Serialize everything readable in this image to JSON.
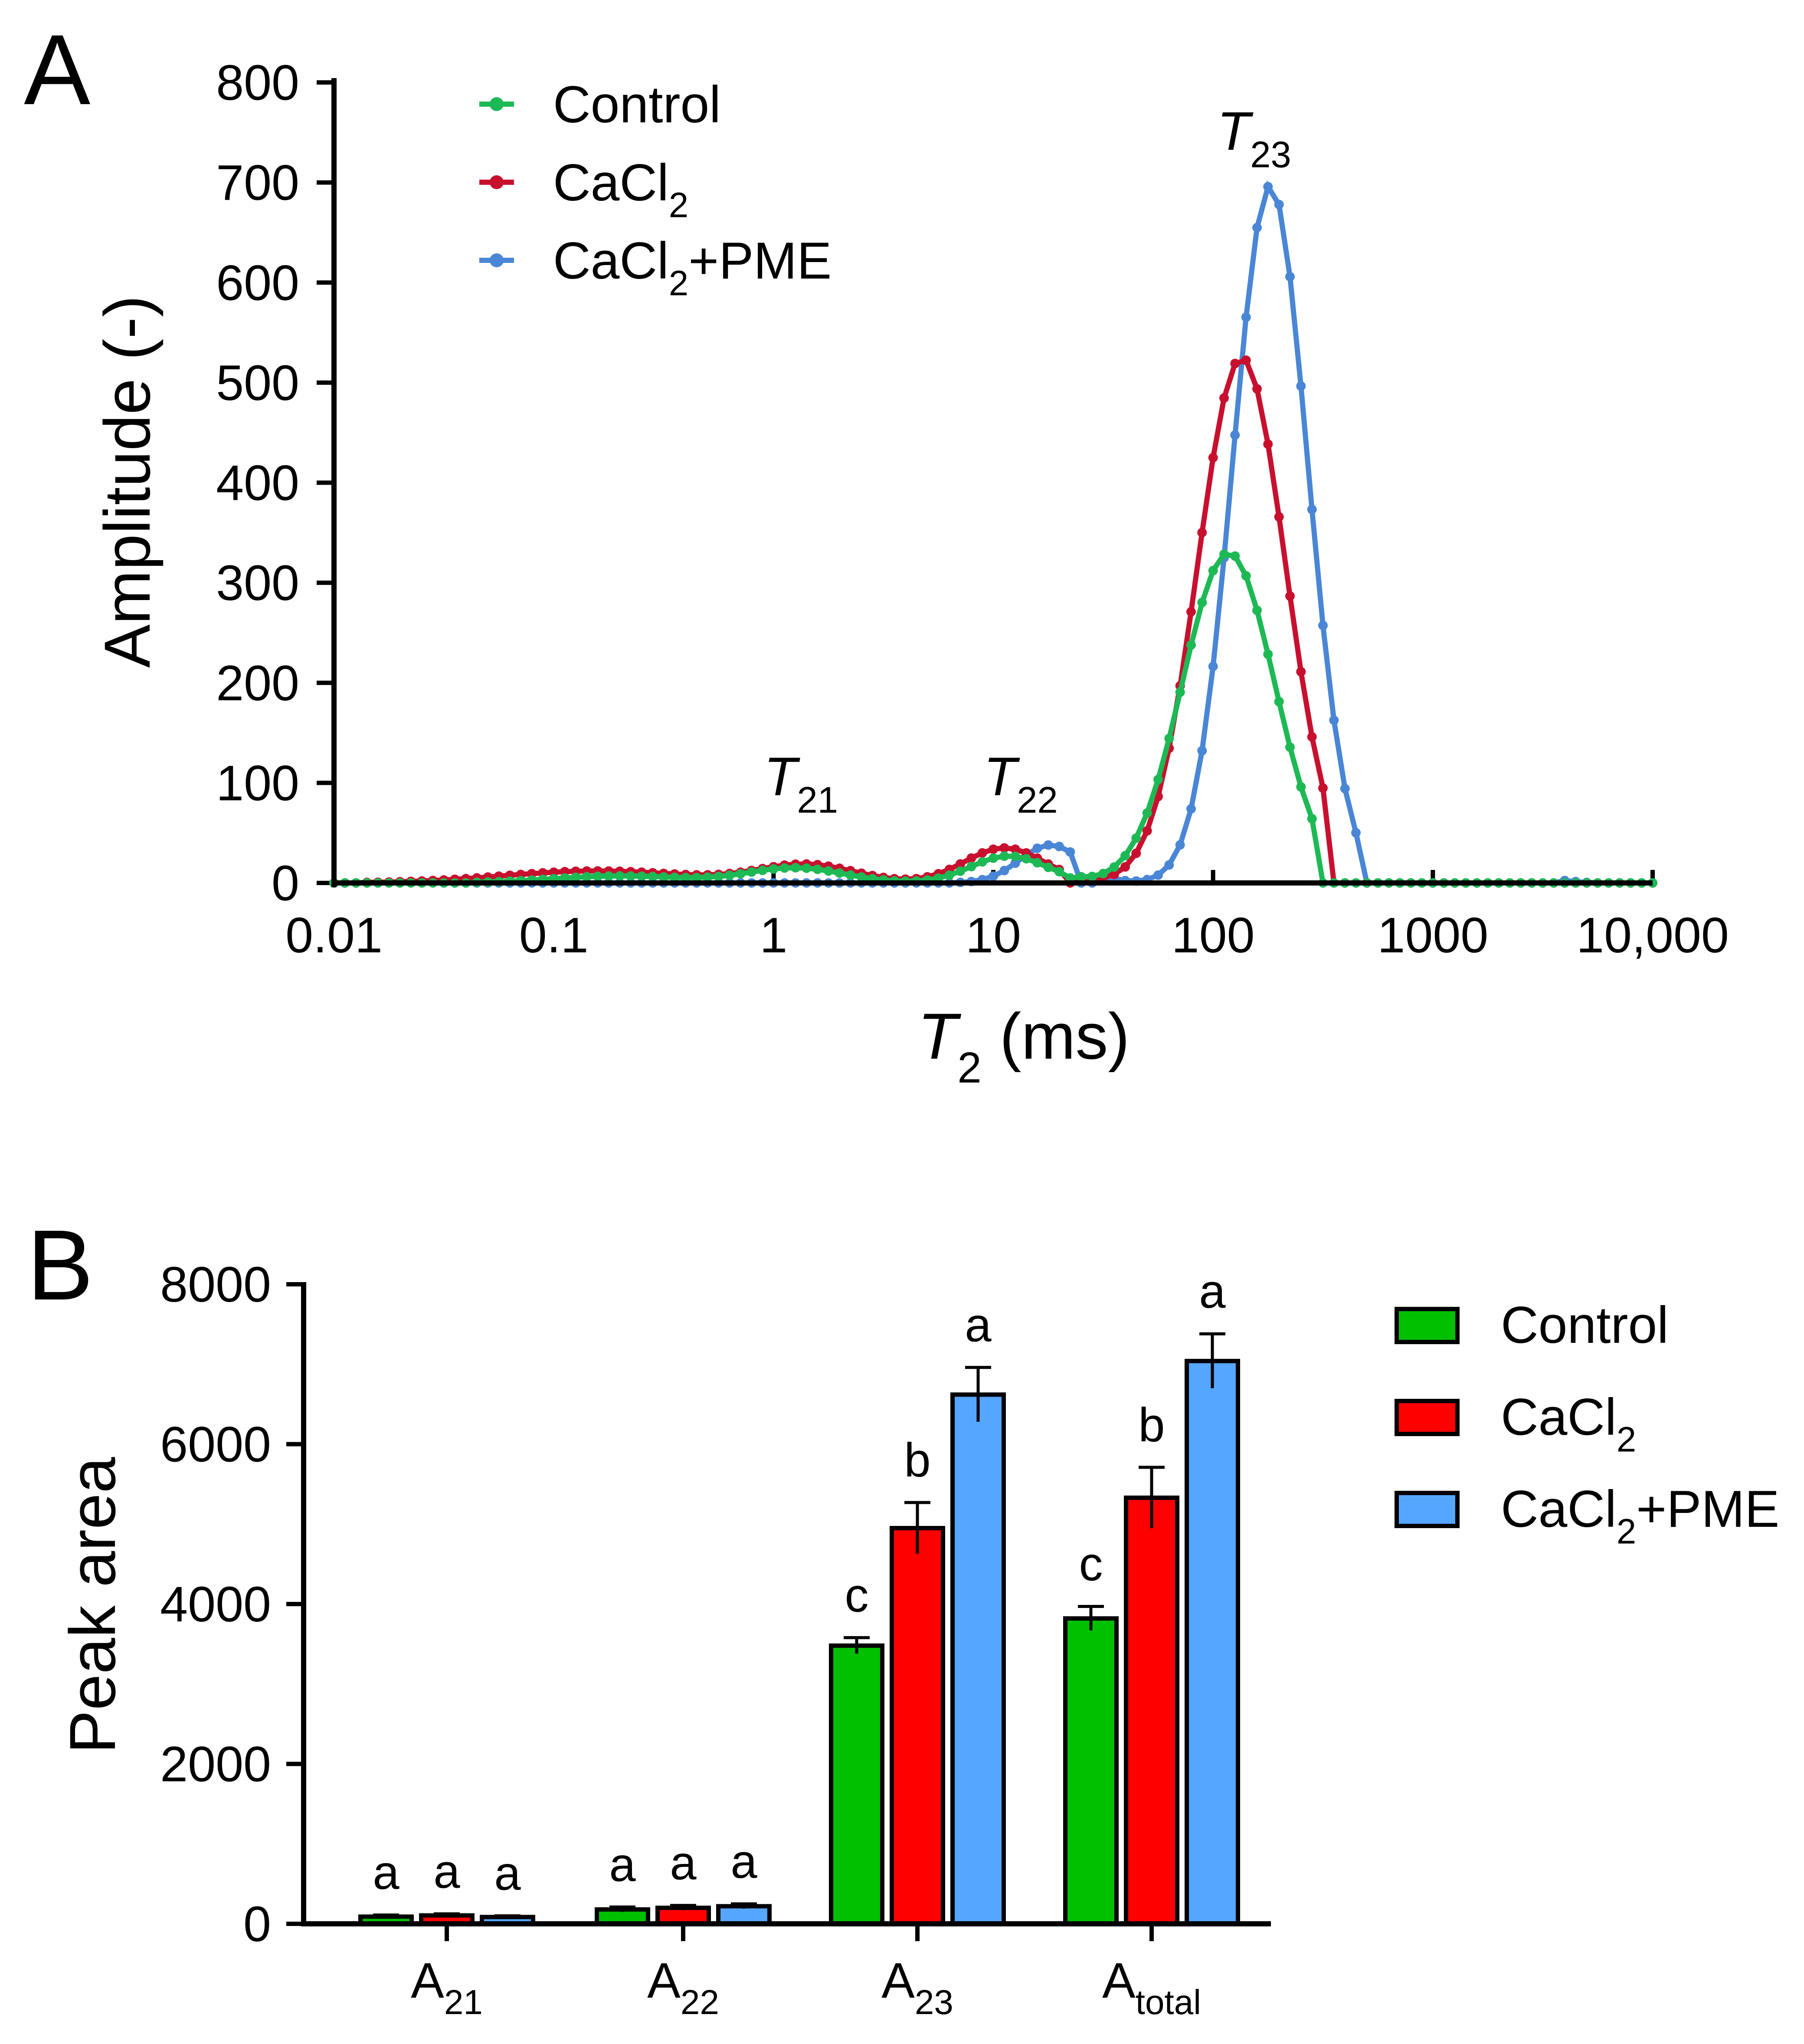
{
  "colors": {
    "control": "#1db954",
    "cacl2": "#c8102e",
    "pme": "#4a86d6",
    "bar_control": "#00c000",
    "bar_cacl2": "#ff0000",
    "bar_pme": "#55a6ff"
  },
  "chart_data": [
    {
      "panel": "A",
      "type": "line",
      "xscale": "log",
      "xlim": [
        0.01,
        10000
      ],
      "ylim": [
        0,
        800
      ],
      "xticks": [
        0.01,
        0.1,
        1,
        10,
        100,
        1000,
        10000
      ],
      "xtick_labels": [
        "0.01",
        "0.1",
        "1",
        "10",
        "100",
        "1000",
        "10,000"
      ],
      "yticks": [
        0,
        100,
        200,
        300,
        400,
        500,
        600,
        700,
        800
      ],
      "ytick_labels": [
        "0",
        "100",
        "200",
        "300",
        "400",
        "500",
        "600",
        "700",
        "800"
      ],
      "ylabel": "Amplitude (-)",
      "xlabel": {
        "main": "T",
        "sub": "2",
        "rest": " (ms)"
      },
      "legend_position": "top-left",
      "annotations": [
        {
          "main": "T",
          "sub": "21",
          "x": 1.3,
          "y": 105
        },
        {
          "main": "T",
          "sub": "22",
          "x": 13,
          "y": 105
        },
        {
          "main": "T",
          "sub": "23",
          "x": 150,
          "y": 750
        }
      ],
      "series": [
        {
          "key": "control",
          "label_main": "Control",
          "label_sub": "",
          "label_rest": "",
          "peaks": [
            {
              "log_center": -0.7,
              "sigma": 0.3,
              "amp": 7
            },
            {
              "log_center": 0.1,
              "sigma": 0.22,
              "amp": 15
            },
            {
              "log_center": 1.07,
              "sigma": 0.17,
              "amp": 27
            },
            {
              "log_center": 2.07,
              "sigma": 0.21,
              "amp": 330
            },
            {
              "log_center": 3.05,
              "sigma": 0.1,
              "amp": 7
            }
          ],
          "cut_low": 1.38,
          "cut_high": 2.48
        },
        {
          "key": "cacl2",
          "label_main": "CaCl",
          "label_sub": "2",
          "label_rest": "",
          "peaks": [
            {
              "log_center": -0.8,
              "sigma": 0.42,
              "amp": 12
            },
            {
              "log_center": 0.15,
              "sigma": 0.22,
              "amp": 18
            },
            {
              "log_center": 1.05,
              "sigma": 0.18,
              "amp": 35
            },
            {
              "log_center": 2.13,
              "sigma": 0.2,
              "amp": 525
            },
            {
              "log_center": 3.1,
              "sigma": 0.1,
              "amp": 7
            }
          ],
          "cut_low": 1.43,
          "cut_high": 2.53
        },
        {
          "key": "pme",
          "label_main": "CaCl",
          "label_sub": "2",
          "label_rest": "+PME",
          "peaks": [
            {
              "log_center": 1.26,
              "sigma": 0.14,
              "amp": 38
            },
            {
              "log_center": 2.26,
              "sigma": 0.17,
              "amp": 697
            },
            {
              "log_center": 3.5,
              "sigma": 0.1,
              "amp": 4
            }
          ],
          "cut_low": 1.55,
          "cut_high": 2.66
        }
      ]
    },
    {
      "panel": "B",
      "type": "bar",
      "categories": [
        {
          "main": "A",
          "sub": "21"
        },
        {
          "main": "A",
          "sub": "22"
        },
        {
          "main": "A",
          "sub": "23"
        },
        {
          "main": "A",
          "sub": "total"
        }
      ],
      "ylabel": "Peak area",
      "ylim": [
        0,
        8000
      ],
      "yticks": [
        0,
        2000,
        4000,
        6000,
        8000
      ],
      "ytick_labels": [
        "0",
        "2000",
        "4000",
        "6000",
        "8000"
      ],
      "legend_position": "right",
      "series": [
        {
          "key": "bar_control",
          "label_main": "Control",
          "label_sub": "",
          "label_rest": "",
          "values": [
            90,
            180,
            3480,
            3820
          ],
          "errors": [
            20,
            30,
            100,
            150
          ],
          "letters": [
            "a",
            "a",
            "c",
            "c"
          ]
        },
        {
          "key": "bar_cacl2",
          "label_main": "CaCl",
          "label_sub": "2",
          "label_rest": "",
          "values": [
            105,
            200,
            4950,
            5330
          ],
          "errors": [
            20,
            30,
            320,
            380
          ],
          "letters": [
            "a",
            "a",
            "b",
            "b"
          ]
        },
        {
          "key": "bar_pme",
          "label_main": "CaCl",
          "label_sub": "2",
          "label_rest": "+PME",
          "values": [
            85,
            220,
            6620,
            7040
          ],
          "errors": [
            15,
            30,
            340,
            340
          ],
          "letters": [
            "a",
            "a",
            "a",
            "a"
          ]
        }
      ]
    }
  ],
  "panel_labels": [
    "A",
    "B"
  ]
}
